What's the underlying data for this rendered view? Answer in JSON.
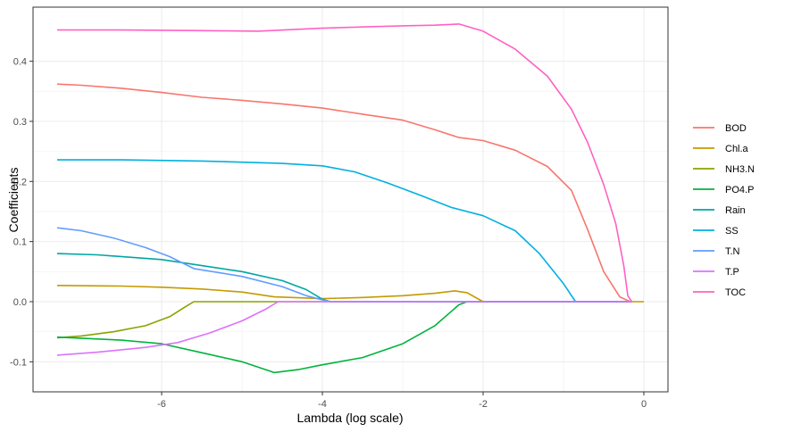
{
  "chart_data": {
    "type": "line",
    "xlabel": "Lambda (log scale)",
    "ylabel": "Coefficients",
    "xlim": [
      -7.6,
      0.3
    ],
    "ylim": [
      -0.15,
      0.49
    ],
    "x_ticks": [
      -6,
      -4,
      -2,
      0
    ],
    "y_ticks": [
      -0.1,
      0.0,
      0.1,
      0.2,
      0.3,
      0.4
    ],
    "grid": true,
    "legend_position": "right",
    "series": [
      {
        "name": "BOD",
        "color": "#F8766D",
        "points": [
          [
            -7.3,
            0.362
          ],
          [
            -7.0,
            0.36
          ],
          [
            -6.5,
            0.355
          ],
          [
            -6.0,
            0.348
          ],
          [
            -5.5,
            0.34
          ],
          [
            -5.0,
            0.335
          ],
          [
            -4.5,
            0.329
          ],
          [
            -4.0,
            0.322
          ],
          [
            -3.5,
            0.312
          ],
          [
            -3.0,
            0.302
          ],
          [
            -2.6,
            0.286
          ],
          [
            -2.3,
            0.273
          ],
          [
            -2.0,
            0.268
          ],
          [
            -1.6,
            0.252
          ],
          [
            -1.2,
            0.225
          ],
          [
            -0.9,
            0.185
          ],
          [
            -0.7,
            0.12
          ],
          [
            -0.5,
            0.05
          ],
          [
            -0.3,
            0.008
          ],
          [
            -0.17,
            0.0
          ]
        ]
      },
      {
        "name": "Chl.a",
        "color": "#C49A00",
        "points": [
          [
            -7.3,
            0.027
          ],
          [
            -6.5,
            0.026
          ],
          [
            -6.0,
            0.024
          ],
          [
            -5.5,
            0.021
          ],
          [
            -5.0,
            0.016
          ],
          [
            -4.6,
            0.008
          ],
          [
            -4.0,
            0.005
          ],
          [
            -3.5,
            0.007
          ],
          [
            -3.0,
            0.01
          ],
          [
            -2.6,
            0.014
          ],
          [
            -2.35,
            0.018
          ],
          [
            -2.2,
            0.015
          ],
          [
            -2.0,
            0.0
          ],
          [
            0,
            0.0
          ]
        ]
      },
      {
        "name": "NH3.N",
        "color": "#8BA200",
        "points": [
          [
            -7.3,
            -0.06
          ],
          [
            -7.0,
            -0.057
          ],
          [
            -6.6,
            -0.05
          ],
          [
            -6.2,
            -0.04
          ],
          [
            -5.9,
            -0.025
          ],
          [
            -5.7,
            -0.008
          ],
          [
            -5.6,
            0.0
          ],
          [
            -0.15,
            0.0
          ]
        ]
      },
      {
        "name": "PO4.P",
        "color": "#00B33C",
        "points": [
          [
            -7.3,
            -0.059
          ],
          [
            -6.5,
            -0.064
          ],
          [
            -6.0,
            -0.07
          ],
          [
            -5.5,
            -0.085
          ],
          [
            -5.0,
            -0.1
          ],
          [
            -4.6,
            -0.118
          ],
          [
            -4.3,
            -0.113
          ],
          [
            -4.0,
            -0.105
          ],
          [
            -3.5,
            -0.093
          ],
          [
            -3.0,
            -0.07
          ],
          [
            -2.6,
            -0.04
          ],
          [
            -2.3,
            -0.005
          ],
          [
            -2.2,
            0.0
          ],
          [
            -0.15,
            0.0
          ]
        ]
      },
      {
        "name": "Rain",
        "color": "#00A6A4",
        "points": [
          [
            -7.3,
            0.08
          ],
          [
            -6.8,
            0.078
          ],
          [
            -6.0,
            0.07
          ],
          [
            -5.5,
            0.06
          ],
          [
            -5.0,
            0.05
          ],
          [
            -4.5,
            0.035
          ],
          [
            -4.2,
            0.02
          ],
          [
            -4.0,
            0.004
          ],
          [
            -3.9,
            0.0
          ],
          [
            -0.15,
            0.0
          ]
        ]
      },
      {
        "name": "SS",
        "color": "#00B0E0",
        "points": [
          [
            -7.3,
            0.236
          ],
          [
            -6.5,
            0.236
          ],
          [
            -5.5,
            0.234
          ],
          [
            -5.0,
            0.232
          ],
          [
            -4.5,
            0.23
          ],
          [
            -4.0,
            0.226
          ],
          [
            -3.6,
            0.216
          ],
          [
            -3.2,
            0.198
          ],
          [
            -2.8,
            0.178
          ],
          [
            -2.4,
            0.157
          ],
          [
            -2.0,
            0.143
          ],
          [
            -1.6,
            0.118
          ],
          [
            -1.3,
            0.08
          ],
          [
            -1.0,
            0.03
          ],
          [
            -0.85,
            0.0
          ],
          [
            -0.15,
            0.0
          ]
        ]
      },
      {
        "name": "T.N",
        "color": "#619CFF",
        "points": [
          [
            -7.3,
            0.123
          ],
          [
            -7.0,
            0.118
          ],
          [
            -6.6,
            0.106
          ],
          [
            -6.2,
            0.09
          ],
          [
            -5.9,
            0.075
          ],
          [
            -5.6,
            0.055
          ],
          [
            -5.0,
            0.042
          ],
          [
            -4.5,
            0.025
          ],
          [
            -4.2,
            0.01
          ],
          [
            -4.0,
            0.003
          ],
          [
            -3.9,
            0.0
          ],
          [
            -0.15,
            0.0
          ]
        ]
      },
      {
        "name": "T.P",
        "color": "#DB72FB",
        "points": [
          [
            -7.3,
            -0.089
          ],
          [
            -6.8,
            -0.084
          ],
          [
            -6.2,
            -0.076
          ],
          [
            -5.8,
            -0.068
          ],
          [
            -5.4,
            -0.052
          ],
          [
            -5.0,
            -0.032
          ],
          [
            -4.7,
            -0.012
          ],
          [
            -4.55,
            0.0
          ],
          [
            -0.15,
            0.0
          ]
        ]
      },
      {
        "name": "TOC",
        "color": "#FF61C3",
        "points": [
          [
            -7.3,
            0.452
          ],
          [
            -6.5,
            0.452
          ],
          [
            -5.5,
            0.451
          ],
          [
            -4.8,
            0.45
          ],
          [
            -4.0,
            0.455
          ],
          [
            -3.5,
            0.457
          ],
          [
            -3.0,
            0.459
          ],
          [
            -2.6,
            0.46
          ],
          [
            -2.3,
            0.462
          ],
          [
            -2.0,
            0.45
          ],
          [
            -1.6,
            0.42
          ],
          [
            -1.2,
            0.375
          ],
          [
            -0.9,
            0.32
          ],
          [
            -0.7,
            0.265
          ],
          [
            -0.5,
            0.195
          ],
          [
            -0.35,
            0.13
          ],
          [
            -0.25,
            0.06
          ],
          [
            -0.2,
            0.01
          ],
          [
            -0.15,
            0.0
          ]
        ]
      }
    ]
  }
}
